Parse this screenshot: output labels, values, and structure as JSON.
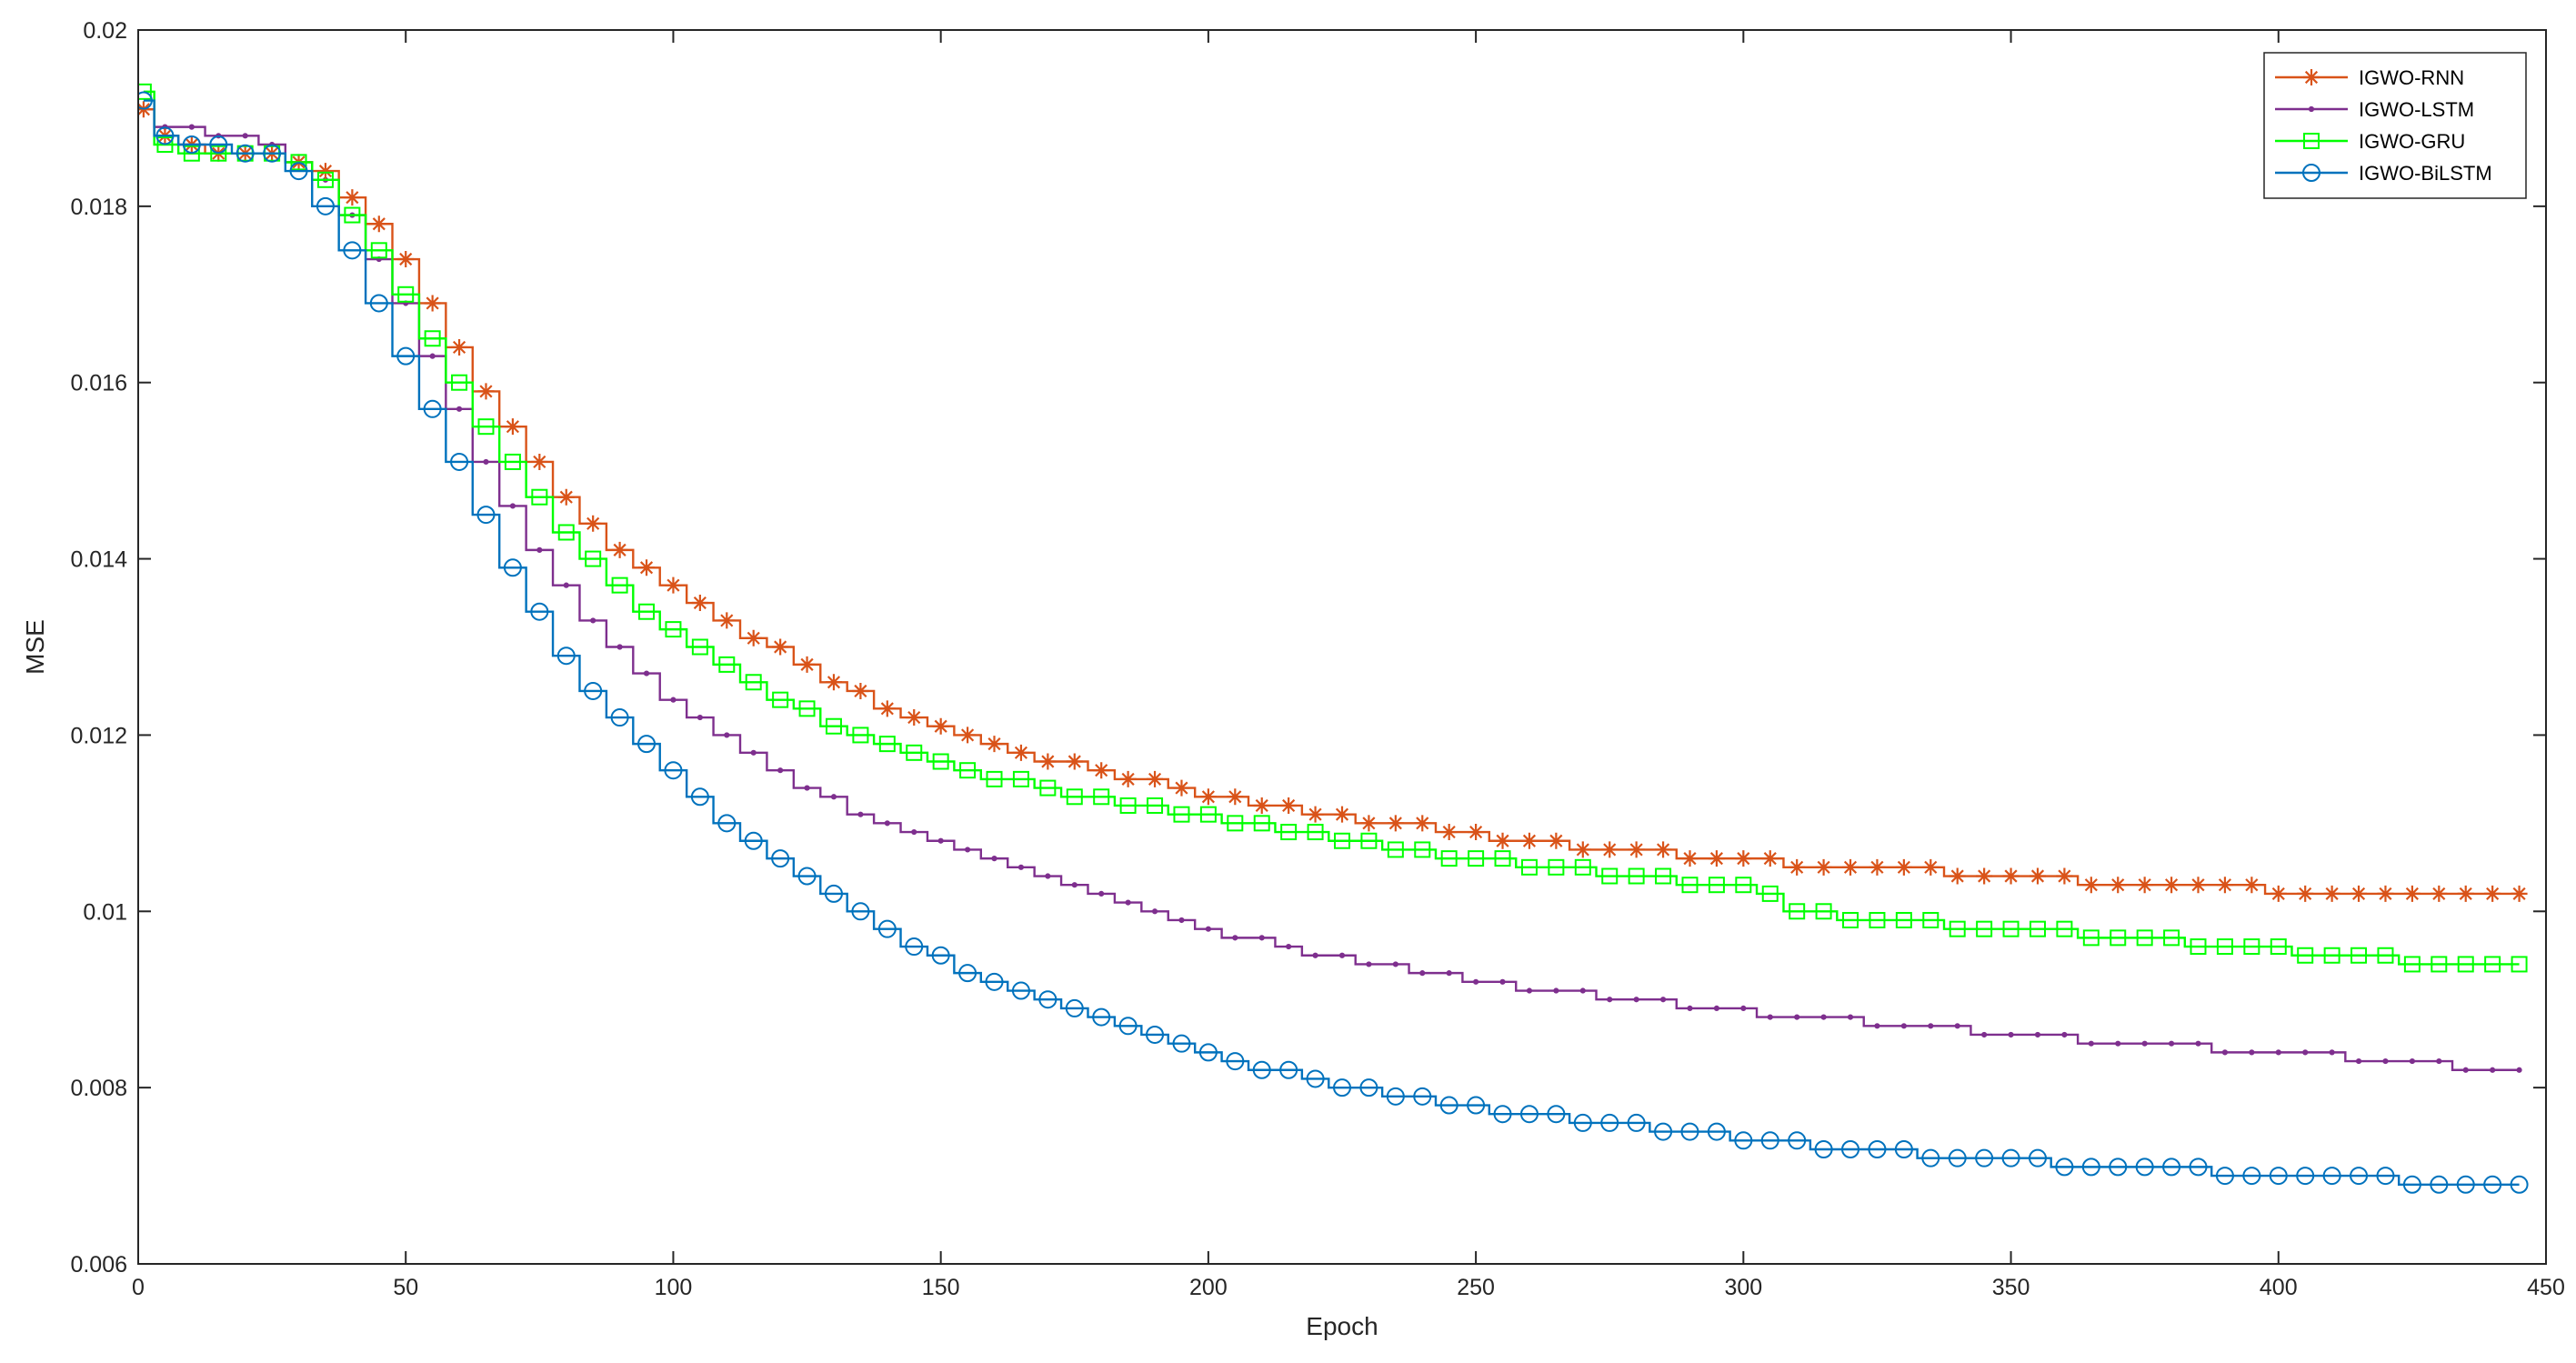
{
  "chart_data": {
    "type": "line",
    "title": "",
    "xlabel": "Epoch",
    "ylabel": "MSE",
    "xlim": [
      0,
      450
    ],
    "ylim": [
      0.006,
      0.02
    ],
    "xticks": [
      0,
      50,
      100,
      150,
      200,
      250,
      300,
      350,
      400,
      450
    ],
    "yticks": [
      0.006,
      0.008,
      0.01,
      0.012,
      0.014,
      0.016,
      0.018,
      0.02
    ],
    "xtick_labels": [
      "0",
      "50",
      "100",
      "150",
      "200",
      "250",
      "300",
      "350",
      "400",
      "450"
    ],
    "ytick_labels": [
      "0.006",
      "0.008",
      "0.01",
      "0.012",
      "0.014",
      "0.016",
      "0.018",
      "0.02"
    ],
    "grid": false,
    "legend_position": "top-right",
    "x": [
      1,
      5,
      10,
      15,
      20,
      25,
      30,
      35,
      40,
      45,
      50,
      55,
      60,
      65,
      70,
      75,
      80,
      85,
      90,
      95,
      100,
      105,
      110,
      115,
      120,
      125,
      130,
      135,
      140,
      145,
      150,
      155,
      160,
      165,
      170,
      175,
      180,
      185,
      190,
      195,
      200,
      205,
      210,
      215,
      220,
      225,
      230,
      235,
      240,
      245,
      250,
      255,
      260,
      265,
      270,
      275,
      280,
      285,
      290,
      295,
      300,
      305,
      310,
      315,
      320,
      325,
      330,
      335,
      340,
      345,
      350,
      355,
      360,
      365,
      370,
      375,
      380,
      385,
      390,
      395,
      400,
      405,
      410,
      415,
      420,
      425,
      430,
      435,
      440,
      445
    ],
    "series": [
      {
        "name": "IGWO-RNN",
        "color": "#D95319",
        "marker": "asterisk",
        "values": [
          0.0191,
          0.0188,
          0.0187,
          0.0186,
          0.0186,
          0.0186,
          0.0185,
          0.0184,
          0.0181,
          0.0178,
          0.0174,
          0.0169,
          0.0164,
          0.0159,
          0.0155,
          0.0151,
          0.0147,
          0.0144,
          0.0141,
          0.0139,
          0.0137,
          0.0135,
          0.0133,
          0.0131,
          0.013,
          0.0128,
          0.0126,
          0.0125,
          0.0123,
          0.0122,
          0.0121,
          0.012,
          0.0119,
          0.0118,
          0.0117,
          0.0117,
          0.0116,
          0.0115,
          0.0115,
          0.0114,
          0.0113,
          0.0113,
          0.0112,
          0.0112,
          0.0111,
          0.0111,
          0.011,
          0.011,
          0.011,
          0.0109,
          0.0109,
          0.0108,
          0.0108,
          0.0108,
          0.0107,
          0.0107,
          0.0107,
          0.0107,
          0.0106,
          0.0106,
          0.0106,
          0.0106,
          0.0105,
          0.0105,
          0.0105,
          0.0105,
          0.0105,
          0.0105,
          0.0104,
          0.0104,
          0.0104,
          0.0104,
          0.0104,
          0.0103,
          0.0103,
          0.0103,
          0.0103,
          0.0103,
          0.0103,
          0.0103,
          0.0102,
          0.0102,
          0.0102,
          0.0102,
          0.0102,
          0.0102,
          0.0102,
          0.0102,
          0.0102,
          0.0102
        ]
      },
      {
        "name": "IGWO-LSTM",
        "color": "#7E2F8E",
        "marker": "dot",
        "values": [
          0.0191,
          0.0189,
          0.0189,
          0.0188,
          0.0188,
          0.0187,
          0.0185,
          0.0183,
          0.0179,
          0.0174,
          0.0169,
          0.0163,
          0.0157,
          0.0151,
          0.0146,
          0.0141,
          0.0137,
          0.0133,
          0.013,
          0.0127,
          0.0124,
          0.0122,
          0.012,
          0.0118,
          0.0116,
          0.0114,
          0.0113,
          0.0111,
          0.011,
          0.0109,
          0.0108,
          0.0107,
          0.0106,
          0.0105,
          0.0104,
          0.0103,
          0.0102,
          0.0101,
          0.01,
          0.0099,
          0.0098,
          0.0097,
          0.0097,
          0.0096,
          0.0095,
          0.0095,
          0.0094,
          0.0094,
          0.0093,
          0.0093,
          0.0092,
          0.0092,
          0.0091,
          0.0091,
          0.0091,
          0.009,
          0.009,
          0.009,
          0.0089,
          0.0089,
          0.0089,
          0.0088,
          0.0088,
          0.0088,
          0.0088,
          0.0087,
          0.0087,
          0.0087,
          0.0087,
          0.0086,
          0.0086,
          0.0086,
          0.0086,
          0.0085,
          0.0085,
          0.0085,
          0.0085,
          0.0085,
          0.0084,
          0.0084,
          0.0084,
          0.0084,
          0.0084,
          0.0083,
          0.0083,
          0.0083,
          0.0083,
          0.0082,
          0.0082,
          0.0082
        ]
      },
      {
        "name": "IGWO-GRU",
        "color": "#00FF00",
        "marker": "square",
        "values": [
          0.0193,
          0.0187,
          0.0186,
          0.0186,
          0.0186,
          0.0186,
          0.0185,
          0.0183,
          0.0179,
          0.0175,
          0.017,
          0.0165,
          0.016,
          0.0155,
          0.0151,
          0.0147,
          0.0143,
          0.014,
          0.0137,
          0.0134,
          0.0132,
          0.013,
          0.0128,
          0.0126,
          0.0124,
          0.0123,
          0.0121,
          0.012,
          0.0119,
          0.0118,
          0.0117,
          0.0116,
          0.0115,
          0.0115,
          0.0114,
          0.0113,
          0.0113,
          0.0112,
          0.0112,
          0.0111,
          0.0111,
          0.011,
          0.011,
          0.0109,
          0.0109,
          0.0108,
          0.0108,
          0.0107,
          0.0107,
          0.0106,
          0.0106,
          0.0106,
          0.0105,
          0.0105,
          0.0105,
          0.0104,
          0.0104,
          0.0104,
          0.0103,
          0.0103,
          0.0103,
          0.0102,
          0.01,
          0.01,
          0.0099,
          0.0099,
          0.0099,
          0.0099,
          0.0098,
          0.0098,
          0.0098,
          0.0098,
          0.0098,
          0.0097,
          0.0097,
          0.0097,
          0.0097,
          0.0096,
          0.0096,
          0.0096,
          0.0096,
          0.0095,
          0.0095,
          0.0095,
          0.0095,
          0.0094,
          0.0094,
          0.0094,
          0.0094,
          0.0094
        ]
      },
      {
        "name": "IGWO-BiLSTM",
        "color": "#0072BD",
        "marker": "circle",
        "values": [
          0.0192,
          0.0188,
          0.0187,
          0.0187,
          0.0186,
          0.0186,
          0.0184,
          0.018,
          0.0175,
          0.0169,
          0.0163,
          0.0157,
          0.0151,
          0.0145,
          0.0139,
          0.0134,
          0.0129,
          0.0125,
          0.0122,
          0.0119,
          0.0116,
          0.0113,
          0.011,
          0.0108,
          0.0106,
          0.0104,
          0.0102,
          0.01,
          0.0098,
          0.0096,
          0.0095,
          0.0093,
          0.0092,
          0.0091,
          0.009,
          0.0089,
          0.0088,
          0.0087,
          0.0086,
          0.0085,
          0.0084,
          0.0083,
          0.0082,
          0.0082,
          0.0081,
          0.008,
          0.008,
          0.0079,
          0.0079,
          0.0078,
          0.0078,
          0.0077,
          0.0077,
          0.0077,
          0.0076,
          0.0076,
          0.0076,
          0.0075,
          0.0075,
          0.0075,
          0.0074,
          0.0074,
          0.0074,
          0.0073,
          0.0073,
          0.0073,
          0.0073,
          0.0072,
          0.0072,
          0.0072,
          0.0072,
          0.0072,
          0.0071,
          0.0071,
          0.0071,
          0.0071,
          0.0071,
          0.0071,
          0.007,
          0.007,
          0.007,
          0.007,
          0.007,
          0.007,
          0.007,
          0.0069,
          0.0069,
          0.0069,
          0.0069,
          0.0069
        ]
      }
    ]
  }
}
